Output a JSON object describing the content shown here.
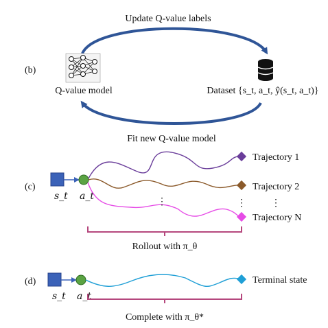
{
  "panel_b": {
    "label": "(b)",
    "top_arrow_label": "Update Q-value labels",
    "bottom_arrow_label": "Fit new Q-value model",
    "model_label": "Q-value model",
    "dataset_label": "Dataset {s_t, a_t, ŷ(s_t, a_t)}",
    "icons": {
      "model": "neural-network-icon",
      "dataset": "database-icon"
    }
  },
  "panel_c": {
    "label": "(c)",
    "state_symbol": "s_t",
    "action_symbol": "a_t",
    "trajectories": [
      {
        "label": "Trajectory 1",
        "color": "#6a3d9a"
      },
      {
        "label": "Trajectory 2",
        "color": "#8b5a2b"
      },
      {
        "label": "Trajectory N",
        "color": "#e64ce6"
      }
    ],
    "ellipsis": "⋮",
    "bracket_label": "Rollout with π_θ"
  },
  "panel_d": {
    "label": "(d)",
    "state_symbol": "s_t",
    "action_symbol": "a_t",
    "terminal_label": "Terminal state",
    "terminal_color": "#1f9fd6",
    "bracket_label": "Complete with π_θ*"
  },
  "colors": {
    "arrow_blue": "#2f5597",
    "state_square": "#3b62b8",
    "action_circle": "#5aa343",
    "bracket": "#b5477d"
  }
}
